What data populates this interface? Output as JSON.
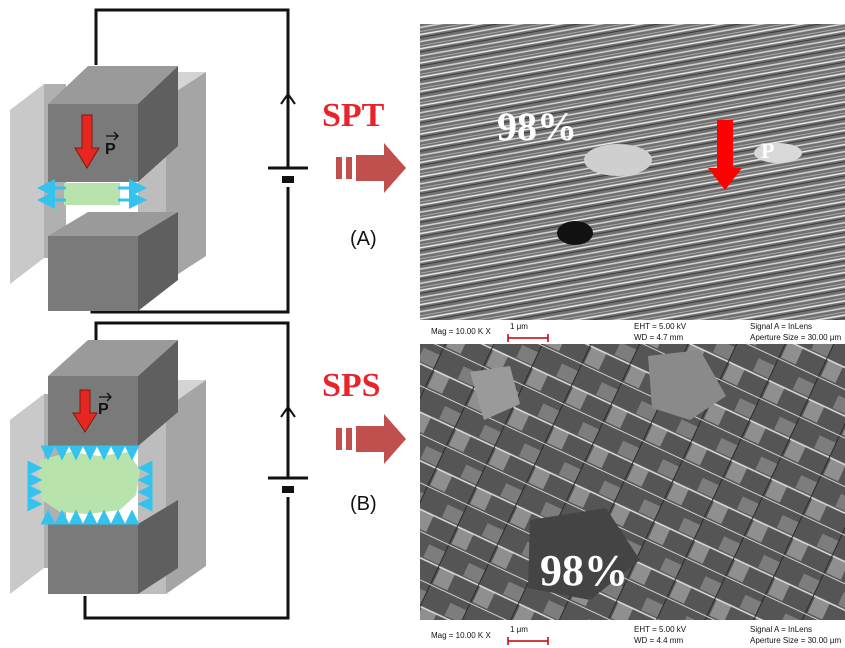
{
  "panels": [
    {
      "process_label": "SPT",
      "caption": "(A)",
      "pressure_symbol": "P",
      "sem": {
        "density_label": "98%",
        "pressure_label": "P",
        "info": {
          "mag": "Mag =  10.00 K X",
          "scale": "1 μm",
          "eht": "EHT =  5.00 kV",
          "wd": "WD =  4.7 mm",
          "signal": "Signal A = InLens",
          "aperture": "Aperture Size = 30.00 μm"
        }
      }
    },
    {
      "process_label": "SPS",
      "caption": "(B)",
      "pressure_symbol": "P",
      "sem": {
        "density_label": "98%",
        "info": {
          "mag": "Mag =  10.00 K X",
          "scale": "1 μm",
          "eht": "EHT =  5.00 kV",
          "wd": "WD =  4.4 mm",
          "signal": "Signal A = InLens",
          "aperture": "Aperture Size = 30.00 μm"
        }
      }
    }
  ],
  "colors": {
    "process_label": "#e8242a",
    "pressure_arrow": "#e8251f",
    "flow_arrow": "#c0504d",
    "field_arrow": "#33c3ee",
    "sample": "#b9e3ac"
  }
}
